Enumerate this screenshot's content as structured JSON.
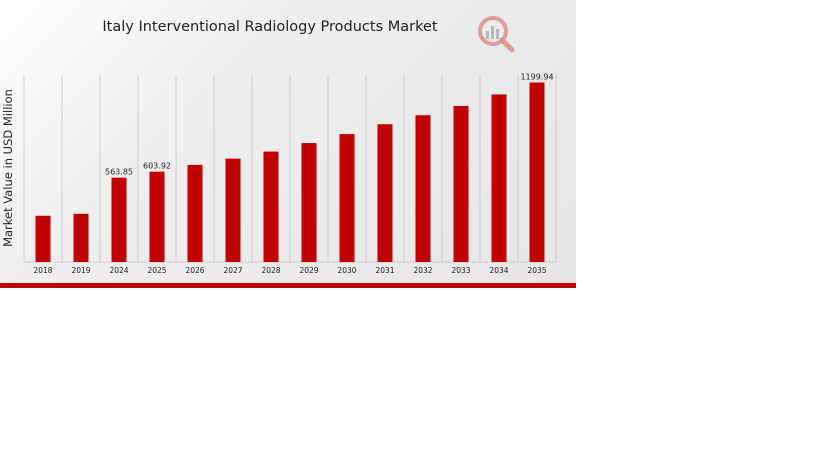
{
  "colors": {
    "bar": "#c00000",
    "grid": "#cccccc",
    "text": "#222222",
    "accent": "#c00000",
    "logo": "#d88a8a"
  },
  "logo_icon": "magnifier-chart-icon",
  "chart_data": {
    "type": "bar",
    "title": "Italy Interventional Radiology Products Market",
    "xlabel": "",
    "ylabel": "Market Value in USD Million",
    "categories": [
      "2018",
      "2019",
      "2024",
      "2025",
      "2026",
      "2027",
      "2028",
      "2029",
      "2030",
      "2031",
      "2032",
      "2033",
      "2034",
      "2035"
    ],
    "values": [
      309,
      322,
      563.85,
      603.92,
      649,
      691,
      738,
      795,
      855,
      921,
      981,
      1043,
      1120,
      1199.94
    ],
    "data_labels": {
      "2024": "563.85",
      "2025": "603.92",
      "2035": "1199.94"
    },
    "ylim": [
      0,
      1250
    ],
    "grid": true,
    "legend": "none"
  }
}
